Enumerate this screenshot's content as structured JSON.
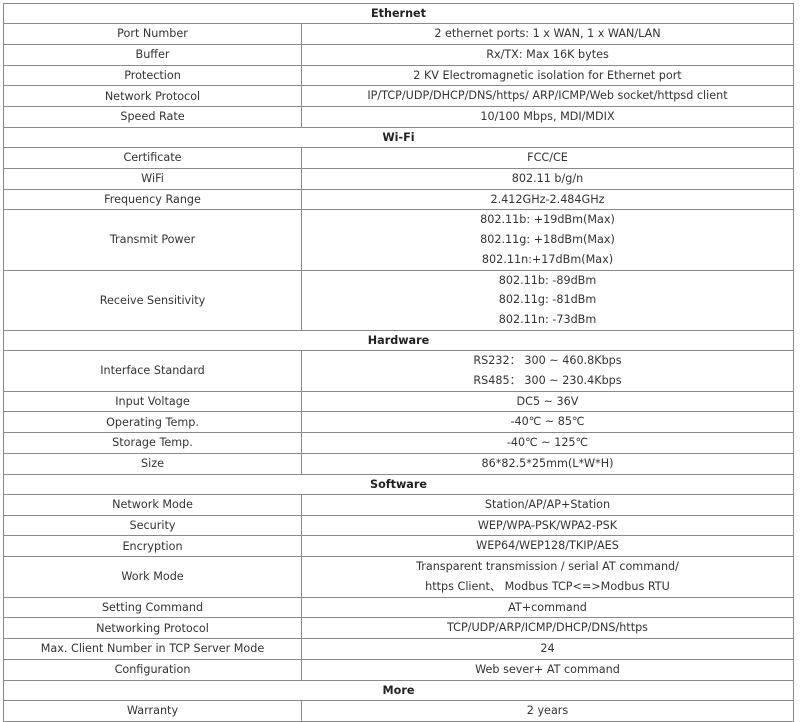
{
  "sections": [
    {
      "title": "Ethernet",
      "rows": [
        {
          "label": "Port Number",
          "value": [
            "2 ethernet ports: 1 x WAN, 1 x WAN/LAN"
          ]
        },
        {
          "label": "Buffer",
          "value": [
            "Rx/TX: Max 16K bytes"
          ]
        },
        {
          "label": "Protection",
          "value": [
            "2 KV Electromagnetic isolation for Ethernet port"
          ]
        },
        {
          "label": "Network Protocol",
          "value": [
            "IP/TCP/UDP/DHCP/DNS/https/ ARP/ICMP/Web socket/httpsd client"
          ]
        },
        {
          "label": "Speed Rate",
          "value": [
            "10/100 Mbps, MDI/MDIX"
          ]
        }
      ]
    },
    {
      "title": "Wi-Fi",
      "rows": [
        {
          "label": "Certificate",
          "value": [
            "FCC/CE"
          ]
        },
        {
          "label": "WiFi",
          "value": [
            "802.11 b/g/n"
          ]
        },
        {
          "label": "Frequency Range",
          "value": [
            "2.412GHz-2.484GHz"
          ]
        },
        {
          "label": "Transmit Power",
          "value": [
            "802.11b: +19dBm(Max)",
            "802.11g: +18dBm(Max)",
            "802.11n:+17dBm(Max)"
          ]
        },
        {
          "label": "Receive Sensitivity",
          "value": [
            "802.11b: -89dBm",
            "802.11g: -81dBm",
            "802.11n: -73dBm"
          ]
        }
      ]
    },
    {
      "title": "Hardware",
      "rows": [
        {
          "label": "Interface Standard",
          "value": [
            "RS232：  300 ~ 460.8Kbps",
            "RS485：  300 ~ 230.4Kbps"
          ]
        },
        {
          "label": "Input Voltage",
          "value": [
            "DC5 ~ 36V"
          ]
        },
        {
          "label": "Operating Temp.",
          "value": [
            "-40℃ ~  85℃"
          ]
        },
        {
          "label": "Storage Temp.",
          "value": [
            "-40℃ ~  125℃"
          ]
        },
        {
          "label": "Size",
          "value": [
            "86*82.5*25mm(L*W*H)"
          ]
        }
      ]
    },
    {
      "title": "Software",
      "rows": [
        {
          "label": "Network Mode",
          "value": [
            "Station/AP/AP+Station"
          ]
        },
        {
          "label": "Security",
          "value": [
            "WEP/WPA-PSK/WPA2-PSK"
          ]
        },
        {
          "label": "Encryption",
          "value": [
            "WEP64/WEP128/TKIP/AES"
          ]
        },
        {
          "label": "Work Mode",
          "value": [
            "Transparent transmission / serial AT command/",
            "https Client、 Modbus TCP<=>Modbus RTU"
          ]
        },
        {
          "label": "Setting Command",
          "value": [
            "AT+command"
          ]
        },
        {
          "label": "Networking Protocol",
          "value": [
            "TCP/UDP/ARP/ICMP/DHCP/DNS/https"
          ]
        },
        {
          "label": "Max. Client Number in TCP Server Mode",
          "value": [
            "24"
          ]
        },
        {
          "label": "Configuration",
          "value": [
            "Web sever+ AT command"
          ]
        }
      ]
    },
    {
      "title": "More",
      "rows": [
        {
          "label": "Warranty",
          "value": [
            "2 years"
          ]
        }
      ]
    }
  ]
}
